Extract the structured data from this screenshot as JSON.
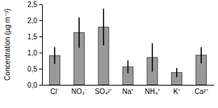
{
  "chart_data": {
    "type": "bar",
    "y_label": "Concentration (µg m⁻³)",
    "categories": [
      "Cl⁻",
      "NO₃⁻",
      "SO₄²⁻",
      "Na⁺",
      "NH₄⁺",
      "K⁺",
      "Ca²⁺"
    ],
    "values": [
      0.91,
      1.62,
      1.79,
      0.56,
      0.85,
      0.38,
      0.92
    ],
    "errors": [
      0.26,
      0.47,
      0.57,
      0.2,
      0.44,
      0.14,
      0.25
    ],
    "color": "#999999",
    "ylim": [
      0,
      2.5
    ],
    "yticks": [
      {
        "value": 0,
        "label": "0,0"
      },
      {
        "value": 0.5,
        "label": "0,5"
      },
      {
        "value": 1,
        "label": "1,0"
      },
      {
        "value": 1.5,
        "label": "1,5"
      },
      {
        "value": 2,
        "label": "2,0"
      },
      {
        "value": 2.5,
        "label": "2,5"
      }
    ],
    "grid": false
  }
}
